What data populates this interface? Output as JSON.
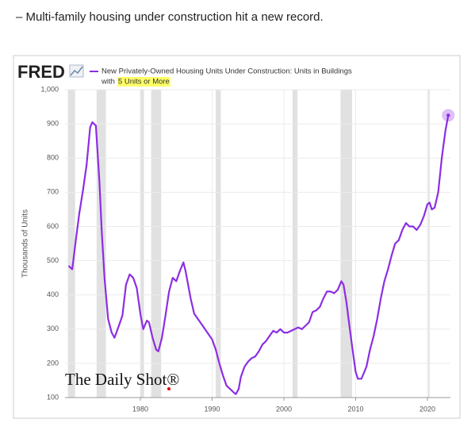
{
  "headline": "– Multi-family housing under construction hit a new record.",
  "chart_data": {
    "type": "line",
    "logo": "FRED",
    "title": "New Privately-Owned Housing Units Under Construction: Units in Buildings",
    "title_continued": "with",
    "title_highlight": "5 Units or More",
    "y_label": "Thousands of Units",
    "watermark": "The Daily Shot®",
    "grid": true,
    "xlim": [
      1969.5,
      2023.2
    ],
    "xticks": [
      1980,
      1990,
      2000,
      2010,
      2020
    ],
    "ylim": [
      100,
      1000
    ],
    "yticks": [
      100,
      200,
      300,
      400,
      500,
      600,
      700,
      800,
      900,
      {
        "value": 1000,
        "label": "1,000"
      }
    ],
    "recessions": [
      [
        1969.9,
        1970.9
      ],
      [
        1973.9,
        1975.2
      ],
      [
        1980.0,
        1980.5
      ],
      [
        1981.5,
        1982.9
      ],
      [
        1990.5,
        1991.2
      ],
      [
        2001.2,
        2001.9
      ],
      [
        2007.9,
        2009.5
      ],
      [
        2020.1,
        2020.3
      ]
    ],
    "x": [
      1970.0,
      1970.5,
      1971.0,
      1971.5,
      1972.0,
      1972.5,
      1973.0,
      1973.3,
      1973.8,
      1974.3,
      1974.6,
      1975.0,
      1975.5,
      1976.0,
      1976.4,
      1977.0,
      1977.5,
      1978.0,
      1978.5,
      1979.0,
      1979.5,
      1980.0,
      1980.4,
      1980.9,
      1981.2,
      1981.7,
      1982.2,
      1982.5,
      1983.0,
      1983.5,
      1984.0,
      1984.5,
      1985.0,
      1985.5,
      1986.0,
      1986.3,
      1987.0,
      1987.5,
      1988.0,
      1988.5,
      1989.0,
      1989.5,
      1990.0,
      1990.5,
      1991.0,
      1991.5,
      1992.0,
      1992.5,
      1993.0,
      1993.3,
      1993.7,
      1994.0,
      1994.5,
      1995.0,
      1995.5,
      1996.0,
      1996.5,
      1997.0,
      1997.5,
      1998.0,
      1998.5,
      1999.0,
      1999.5,
      2000.0,
      2000.5,
      2001.0,
      2001.5,
      2002.0,
      2002.5,
      2003.0,
      2003.5,
      2004.0,
      2004.5,
      2005.0,
      2005.5,
      2006.0,
      2006.5,
      2007.0,
      2007.5,
      2008.0,
      2008.3,
      2008.7,
      2009.0,
      2009.5,
      2010.0,
      2010.3,
      2010.8,
      2011.0,
      2011.5,
      2012.0,
      2012.5,
      2013.0,
      2013.5,
      2014.0,
      2014.5,
      2015.0,
      2015.5,
      2016.0,
      2016.5,
      2017.0,
      2017.5,
      2018.0,
      2018.5,
      2019.0,
      2019.5,
      2020.0,
      2020.3,
      2020.6,
      2021.0,
      2021.5,
      2022.0,
      2022.5,
      2022.9
    ],
    "series": [
      {
        "name": "New Privately-Owned Housing Units Under Construction: Units in Buildings with 5 Units or More",
        "color": "#8c2ee3",
        "values": [
          485,
          475,
          560,
          640,
          705,
          780,
          890,
          905,
          895,
          730,
          590,
          450,
          330,
          290,
          275,
          310,
          340,
          430,
          460,
          450,
          420,
          345,
          300,
          325,
          320,
          275,
          240,
          235,
          275,
          340,
          410,
          450,
          440,
          470,
          495,
          470,
          390,
          345,
          330,
          315,
          300,
          285,
          270,
          240,
          200,
          165,
          135,
          125,
          115,
          110,
          125,
          160,
          190,
          205,
          215,
          220,
          235,
          255,
          265,
          280,
          295,
          290,
          300,
          290,
          290,
          295,
          300,
          305,
          300,
          310,
          320,
          350,
          355,
          365,
          390,
          410,
          410,
          405,
          415,
          440,
          430,
          380,
          330,
          250,
          175,
          155,
          155,
          165,
          190,
          240,
          280,
          330,
          390,
          440,
          475,
          515,
          550,
          560,
          590,
          610,
          600,
          600,
          590,
          605,
          630,
          665,
          670,
          650,
          655,
          700,
          800,
          880,
          925
        ]
      }
    ]
  }
}
